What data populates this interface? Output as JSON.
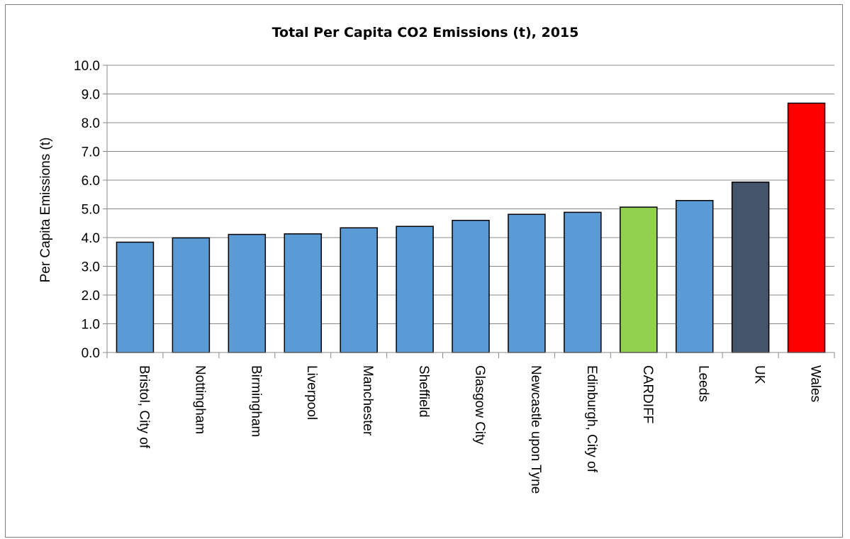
{
  "chart_data": {
    "type": "bar",
    "title": "Total Per Capita CO2 Emissions (t), 2015",
    "xlabel": "",
    "ylabel": "Per Capita Emissions (t)",
    "ylim": [
      0,
      10
    ],
    "yticks": [
      "0.0",
      "1.0",
      "2.0",
      "3.0",
      "4.0",
      "5.0",
      "6.0",
      "7.0",
      "8.0",
      "9.0",
      "10.0"
    ],
    "grid": true,
    "categories": [
      "Bristol, City of",
      "Nottingham",
      "Birmingham",
      "Liverpool",
      "Manchester",
      "Sheffield",
      "Glasgow City",
      "Newcastle upon Tyne",
      "Edinburgh, City of",
      "CARDIFF",
      "Leeds",
      "UK",
      "Wales"
    ],
    "values": [
      3.84,
      3.99,
      4.11,
      4.13,
      4.34,
      4.39,
      4.6,
      4.81,
      4.88,
      5.06,
      5.29,
      5.93,
      8.68
    ],
    "colors": [
      "#5b9bd5",
      "#5b9bd5",
      "#5b9bd5",
      "#5b9bd5",
      "#5b9bd5",
      "#5b9bd5",
      "#5b9bd5",
      "#5b9bd5",
      "#5b9bd5",
      "#92d050",
      "#5b9bd5",
      "#44546a",
      "#ff0000"
    ]
  }
}
